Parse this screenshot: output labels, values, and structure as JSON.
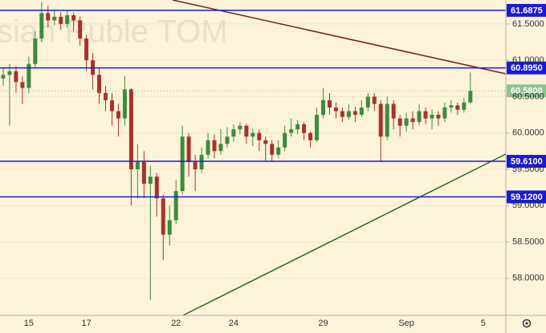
{
  "watermark": "sian Ruble TOM",
  "chart_data": {
    "type": "candlestick",
    "categories": [
      null,
      null,
      null,
      null,
      "15",
      null,
      null,
      null,
      null,
      null,
      null,
      null,
      null,
      "17",
      null,
      null,
      null,
      null,
      null,
      null,
      null,
      null,
      null,
      null,
      null,
      null,
      null,
      "22",
      null,
      null,
      null,
      null,
      null,
      null,
      null,
      null,
      "24",
      null,
      null,
      null,
      null,
      null,
      null,
      null,
      null,
      null,
      null,
      null,
      null,
      null,
      "29",
      null,
      null,
      null,
      null,
      null,
      null,
      null,
      null,
      null,
      null,
      null,
      null,
      "Sep",
      null,
      null,
      null,
      null,
      null,
      null,
      null,
      null,
      null,
      null,
      null,
      "5",
      null
    ],
    "open": [
      60.75,
      60.8,
      60.85,
      60.7,
      60.62,
      60.95,
      61.3,
      61.65,
      61.55,
      61.6,
      61.5,
      61.62,
      61.55,
      61.3,
      61.0,
      60.8,
      60.55,
      60.45,
      60.3,
      60.2,
      60.6,
      59.5,
      59.6,
      59.3,
      59.4,
      59.1,
      58.6,
      58.8,
      59.2,
      59.95,
      59.6,
      59.5,
      59.7,
      59.9,
      59.75,
      59.85,
      59.95,
      60.05,
      60.1,
      59.95,
      60.0,
      59.9,
      59.85,
      59.7,
      59.8,
      60.0,
      60.05,
      60.12,
      60.0,
      59.9,
      60.25,
      60.45,
      60.35,
      60.3,
      60.22,
      60.3,
      60.25,
      60.35,
      60.5,
      60.4,
      59.95,
      60.4,
      60.2,
      60.1,
      60.2,
      60.15,
      60.3,
      60.2,
      60.25,
      60.2,
      60.35,
      60.38,
      60.32,
      60.42,
      null,
      null,
      null
    ],
    "high": [
      60.9,
      60.95,
      60.92,
      60.78,
      61.05,
      61.4,
      61.8,
      61.75,
      61.7,
      61.66,
      61.68,
      61.66,
      61.6,
      61.35,
      61.1,
      60.9,
      60.65,
      60.55,
      60.4,
      60.78,
      60.62,
      59.85,
      59.75,
      59.55,
      59.45,
      59.15,
      59.0,
      59.35,
      60.1,
      60.0,
      59.7,
      59.8,
      60.0,
      59.98,
      60.05,
      60.08,
      60.12,
      60.15,
      60.13,
      60.06,
      60.05,
      59.95,
      59.9,
      59.9,
      60.1,
      60.2,
      60.18,
      60.15,
      60.02,
      60.35,
      60.62,
      60.55,
      60.42,
      60.35,
      60.4,
      60.36,
      60.45,
      60.55,
      60.55,
      60.45,
      60.5,
      60.45,
      60.25,
      60.28,
      60.3,
      60.4,
      60.35,
      60.32,
      60.3,
      60.42,
      60.45,
      60.42,
      60.48,
      60.83,
      null,
      null,
      null
    ],
    "low": [
      60.65,
      60.1,
      60.55,
      60.4,
      60.55,
      60.9,
      61.25,
      61.45,
      61.48,
      61.42,
      61.45,
      61.4,
      61.2,
      60.85,
      60.6,
      60.4,
      60.3,
      60.1,
      59.95,
      60.1,
      59.0,
      59.1,
      59.1,
      57.7,
      58.85,
      58.25,
      58.45,
      58.75,
      59.15,
      59.4,
      59.2,
      59.45,
      59.65,
      59.65,
      59.7,
      59.8,
      59.88,
      59.98,
      59.85,
      59.82,
      59.75,
      59.62,
      59.6,
      59.65,
      59.75,
      59.95,
      59.98,
      59.9,
      59.8,
      59.88,
      60.2,
      60.25,
      60.2,
      60.15,
      60.18,
      60.15,
      60.22,
      60.3,
      60.3,
      59.6,
      59.9,
      60.05,
      59.95,
      60.02,
      60.05,
      60.1,
      60.12,
      60.05,
      60.1,
      60.15,
      60.28,
      60.25,
      60.28,
      60.4,
      null,
      null,
      null
    ],
    "close": [
      60.8,
      60.85,
      60.7,
      60.62,
      60.95,
      61.3,
      61.65,
      61.55,
      61.6,
      61.5,
      61.62,
      61.55,
      61.3,
      61.0,
      60.8,
      60.55,
      60.45,
      60.3,
      60.2,
      60.6,
      59.5,
      59.6,
      59.3,
      59.4,
      59.1,
      58.6,
      58.8,
      59.2,
      59.95,
      59.6,
      59.5,
      59.7,
      59.9,
      59.75,
      59.85,
      59.95,
      60.05,
      60.1,
      59.95,
      60.0,
      59.9,
      59.85,
      59.7,
      59.8,
      60.0,
      60.05,
      60.12,
      60.0,
      59.9,
      60.25,
      60.45,
      60.35,
      60.3,
      60.22,
      60.3,
      60.25,
      60.35,
      60.5,
      60.4,
      59.95,
      60.4,
      60.2,
      60.1,
      60.2,
      60.15,
      60.3,
      60.2,
      60.25,
      60.2,
      60.35,
      60.38,
      60.32,
      60.42,
      60.58,
      null,
      null,
      null
    ],
    "up_color": "#3d8b3d",
    "down_color": "#a8322d",
    "ylim": [
      57.49,
      61.83
    ],
    "yticks": [
      {
        "value": 58,
        "label": "58.0000"
      },
      {
        "value": 58.5,
        "label": "58.5000"
      },
      {
        "value": 59,
        "label": "59.0000"
      },
      {
        "value": 59.5,
        "label": "59.5000"
      },
      {
        "value": 60,
        "label": "60.0000"
      },
      {
        "value": 60.5,
        "label": "60.5000"
      },
      {
        "value": 61,
        "label": "61.0000"
      },
      {
        "value": 61.5,
        "label": "61.5000"
      }
    ],
    "grid": true,
    "levels": [
      {
        "value": 61.6875,
        "label": "61.6875",
        "color": "#1a1ad6"
      },
      {
        "value": 60.895,
        "label": "60.8950",
        "color": "#1a1ad6"
      },
      {
        "value": 60.58,
        "label": "60.5800",
        "color": "#8cc48b"
      },
      {
        "value": 59.61,
        "label": "59.6100",
        "color": "#1a1ad6"
      },
      {
        "value": 59.12,
        "label": "59.1200",
        "color": "#1a1ad6"
      }
    ]
  }
}
